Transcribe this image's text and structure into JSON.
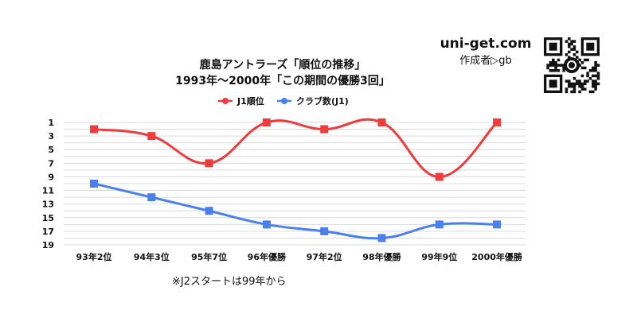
{
  "site": {
    "name": "uni-get.com",
    "author": "作成者▷gb"
  },
  "note": "※J2スタートは99年から",
  "colors": {
    "red": "#ef3b3b",
    "blue": "#4a7ff0",
    "grid": "#d9d9d9"
  },
  "icons": {
    "qr": "qr-code-icon"
  },
  "chart_data": {
    "type": "line",
    "title": "鹿島アントラーズ「順位の推移」",
    "subtitle": "1993年〜2000年「この期間の優勝3回」",
    "categories": [
      "93年2位",
      "94年3位",
      "95年7位",
      "96年優勝",
      "97年2位",
      "98年優勝",
      "99年9位",
      "2000年優勝"
    ],
    "y_ticks": [
      1,
      3,
      5,
      7,
      9,
      11,
      13,
      15,
      17,
      19
    ],
    "ylim": [
      1,
      19
    ],
    "y_inverted": true,
    "grid": true,
    "legend_position": "top",
    "series": [
      {
        "name": "J1順位",
        "color": "#ef3b3b",
        "values": [
          2,
          3,
          7,
          1,
          2,
          1,
          9,
          1
        ]
      },
      {
        "name": "クラブ数(J1)",
        "color": "#4a7ff0",
        "values": [
          10,
          12,
          14,
          16,
          17,
          18,
          16,
          16
        ]
      }
    ]
  }
}
